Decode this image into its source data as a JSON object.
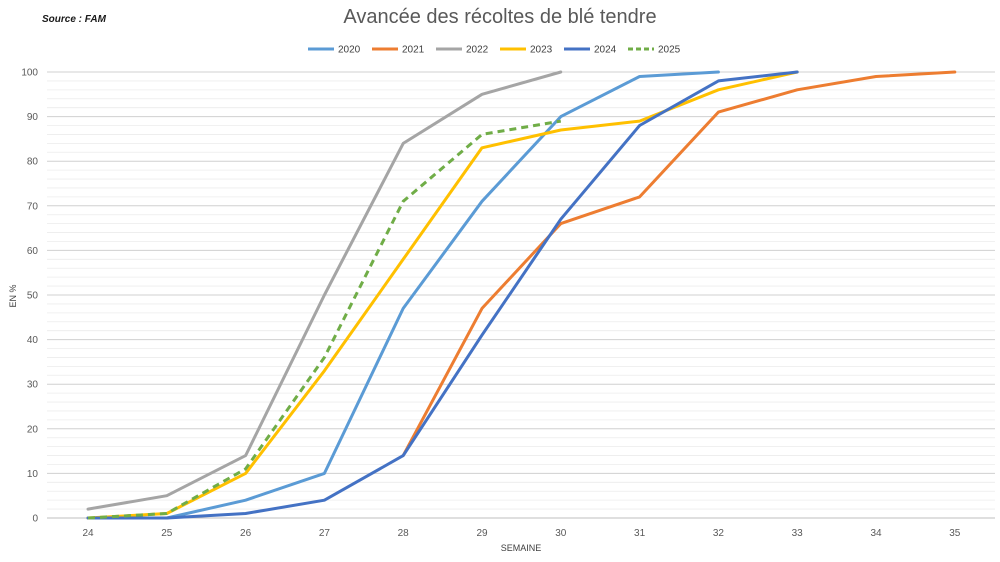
{
  "source": "Source : FAM",
  "chart_data": {
    "type": "line",
    "title": "Avancée des récoltes de blé tendre",
    "xlabel": "SEMAINE",
    "ylabel": "EN %",
    "x": [
      24,
      25,
      26,
      27,
      28,
      29,
      30,
      31,
      32,
      33,
      34,
      35
    ],
    "xlim": [
      24,
      35
    ],
    "ylim": [
      0,
      100
    ],
    "yticks": [
      0,
      10,
      20,
      30,
      40,
      50,
      60,
      70,
      80,
      90,
      100
    ],
    "legend_position": "top",
    "series": [
      {
        "name": "2020",
        "color": "#5b9bd5",
        "dashed": false,
        "values": [
          0,
          0,
          4,
          10,
          47,
          71,
          90,
          99,
          100,
          null,
          null,
          null
        ]
      },
      {
        "name": "2021",
        "color": "#ed7d31",
        "dashed": false,
        "values": [
          null,
          null,
          null,
          null,
          14,
          47,
          66,
          72,
          91,
          96,
          99,
          100
        ]
      },
      {
        "name": "2022",
        "color": "#a5a5a5",
        "dashed": false,
        "values": [
          2,
          5,
          14,
          50,
          84,
          95,
          100,
          null,
          null,
          null,
          null,
          null
        ]
      },
      {
        "name": "2023",
        "color": "#ffc000",
        "dashed": false,
        "values": [
          0,
          1,
          10,
          33,
          58,
          83,
          87,
          89,
          96,
          100,
          null,
          null
        ]
      },
      {
        "name": "2024",
        "color": "#4472c4",
        "dashed": false,
        "values": [
          0,
          0,
          1,
          4,
          14,
          41,
          67,
          88,
          98,
          100,
          null,
          null
        ]
      },
      {
        "name": "2025",
        "color": "#70ad47",
        "dashed": true,
        "values": [
          0,
          1,
          11,
          36,
          71,
          86,
          89,
          null,
          null,
          null,
          null,
          null
        ]
      }
    ]
  }
}
